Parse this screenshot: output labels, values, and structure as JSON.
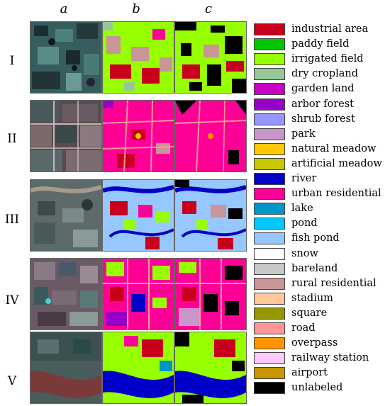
{
  "columns": [
    "a",
    "b",
    "c"
  ],
  "rows": [
    "I",
    "II",
    "III",
    "IV",
    "V"
  ],
  "legend": [
    {
      "label": "industrial area",
      "color": "#c8001e"
    },
    {
      "label": "paddy field",
      "color": "#00c800"
    },
    {
      "label": "irrigated field",
      "color": "#96ff00"
    },
    {
      "label": "dry cropland",
      "color": "#96c896"
    },
    {
      "label": "garden land",
      "color": "#c800c8"
    },
    {
      "label": "arbor forest",
      "color": "#9600c8"
    },
    {
      "label": "shrub forest",
      "color": "#9696ff"
    },
    {
      "label": "park",
      "color": "#c896c8"
    },
    {
      "label": "natural meadow",
      "color": "#ffc800"
    },
    {
      "label": "artificial meadow",
      "color": "#c8c800"
    },
    {
      "label": "river",
      "color": "#0000c8"
    },
    {
      "label": "urban residential",
      "color": "#ff0096"
    },
    {
      "label": "lake",
      "color": "#0096c8"
    },
    {
      "label": "pond",
      "color": "#00c8ff"
    },
    {
      "label": "fish pond",
      "color": "#96c8ff"
    },
    {
      "label": "snow",
      "color": "#ffffff"
    },
    {
      "label": "bareland",
      "color": "#c8c8c8"
    },
    {
      "label": "rural residential",
      "color": "#c89696"
    },
    {
      "label": "stadium",
      "color": "#ffc896"
    },
    {
      "label": "square",
      "color": "#969600"
    },
    {
      "label": "road",
      "color": "#ff9696"
    },
    {
      "label": "overpass",
      "color": "#ff9600"
    },
    {
      "label": "railway station",
      "color": "#ffc8ff"
    },
    {
      "label": "airport",
      "color": "#c89600"
    },
    {
      "label": "unlabeled",
      "color": "#000000"
    }
  ]
}
